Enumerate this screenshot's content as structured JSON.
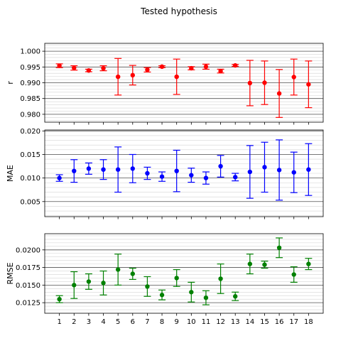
{
  "figure": {
    "title": "Tested hypothesis"
  },
  "chart_data": [
    {
      "type": "scatter",
      "error_bars": true,
      "title": "",
      "xlabel": "",
      "ylabel": "r",
      "color": "#ff0000",
      "x": [
        1,
        2,
        3,
        4,
        5,
        6,
        7,
        8,
        9,
        10,
        11,
        12,
        13,
        14,
        15,
        16,
        17,
        18
      ],
      "y": [
        0.9954,
        0.9947,
        0.9939,
        0.9946,
        0.9919,
        0.9924,
        0.9941,
        0.9951,
        0.9919,
        0.9946,
        0.9951,
        0.9937,
        0.9955,
        0.9899,
        0.99,
        0.9866,
        0.9918,
        0.9895
      ],
      "yerr": [
        0.0006,
        0.0007,
        0.0004,
        0.0008,
        0.0058,
        0.0031,
        0.0007,
        0.0003,
        0.0056,
        0.0005,
        0.0008,
        0.0006,
        0.0003,
        0.0072,
        0.0069,
        0.0076,
        0.0057,
        0.0074
      ],
      "ylim": [
        0.9775,
        1.0025
      ],
      "yticks": [
        "0.980",
        "0.985",
        "0.990",
        "0.995",
        "1.000"
      ],
      "ytick_values": [
        0.98,
        0.985,
        0.99,
        0.995,
        1.0
      ],
      "xticks_shown": false,
      "grid": "major+minor"
    },
    {
      "type": "scatter",
      "error_bars": true,
      "title": "",
      "xlabel": "",
      "ylabel": "MAE",
      "color": "#0000ff",
      "x": [
        1,
        2,
        3,
        4,
        5,
        6,
        7,
        8,
        9,
        10,
        11,
        12,
        13,
        14,
        15,
        16,
        17,
        18
      ],
      "y": [
        0.01,
        0.0115,
        0.012,
        0.0118,
        0.0118,
        0.012,
        0.011,
        0.0103,
        0.0115,
        0.0106,
        0.01,
        0.0125,
        0.0102,
        0.0113,
        0.0123,
        0.0117,
        0.0112,
        0.0118
      ],
      "yerr": [
        0.0007,
        0.0024,
        0.0012,
        0.0021,
        0.0048,
        0.003,
        0.0013,
        0.001,
        0.0044,
        0.0015,
        0.0013,
        0.0023,
        0.0008,
        0.0056,
        0.0053,
        0.0064,
        0.0043,
        0.0055
      ],
      "ylim": [
        0.0018,
        0.0202
      ],
      "yticks": [
        "0.005",
        "0.010",
        "0.015",
        "0.020"
      ],
      "ytick_values": [
        0.005,
        0.01,
        0.015,
        0.02
      ],
      "xticks_shown": false,
      "grid": "major+minor"
    },
    {
      "type": "scatter",
      "error_bars": true,
      "title": "",
      "xlabel": "",
      "ylabel": "RMSE",
      "color": "#008000",
      "x": [
        1,
        2,
        3,
        4,
        5,
        6,
        7,
        8,
        9,
        10,
        11,
        12,
        13,
        14,
        15,
        16,
        17,
        18
      ],
      "y": [
        0.013,
        0.015,
        0.0155,
        0.0153,
        0.0172,
        0.0166,
        0.0148,
        0.0136,
        0.016,
        0.014,
        0.0132,
        0.0159,
        0.0134,
        0.018,
        0.0179,
        0.0203,
        0.0165,
        0.018
      ],
      "yerr": [
        0.0005,
        0.0019,
        0.0011,
        0.0017,
        0.0022,
        0.0008,
        0.0014,
        0.0007,
        0.0012,
        0.0014,
        0.001,
        0.0021,
        0.0006,
        0.0014,
        0.0005,
        0.0014,
        0.0011,
        0.0008
      ],
      "ylim": [
        0.011,
        0.0223
      ],
      "yticks": [
        "0.0125",
        "0.0150",
        "0.0175",
        "0.0200"
      ],
      "ytick_values": [
        0.0125,
        0.015,
        0.0175,
        0.02
      ],
      "xticks": [
        "1",
        "2",
        "3",
        "4",
        "5",
        "6",
        "7",
        "8",
        "9",
        "10",
        "11",
        "12",
        "13",
        "14",
        "15",
        "16",
        "17",
        "18"
      ],
      "xticks_shown": true,
      "grid": "major+minor"
    }
  ]
}
